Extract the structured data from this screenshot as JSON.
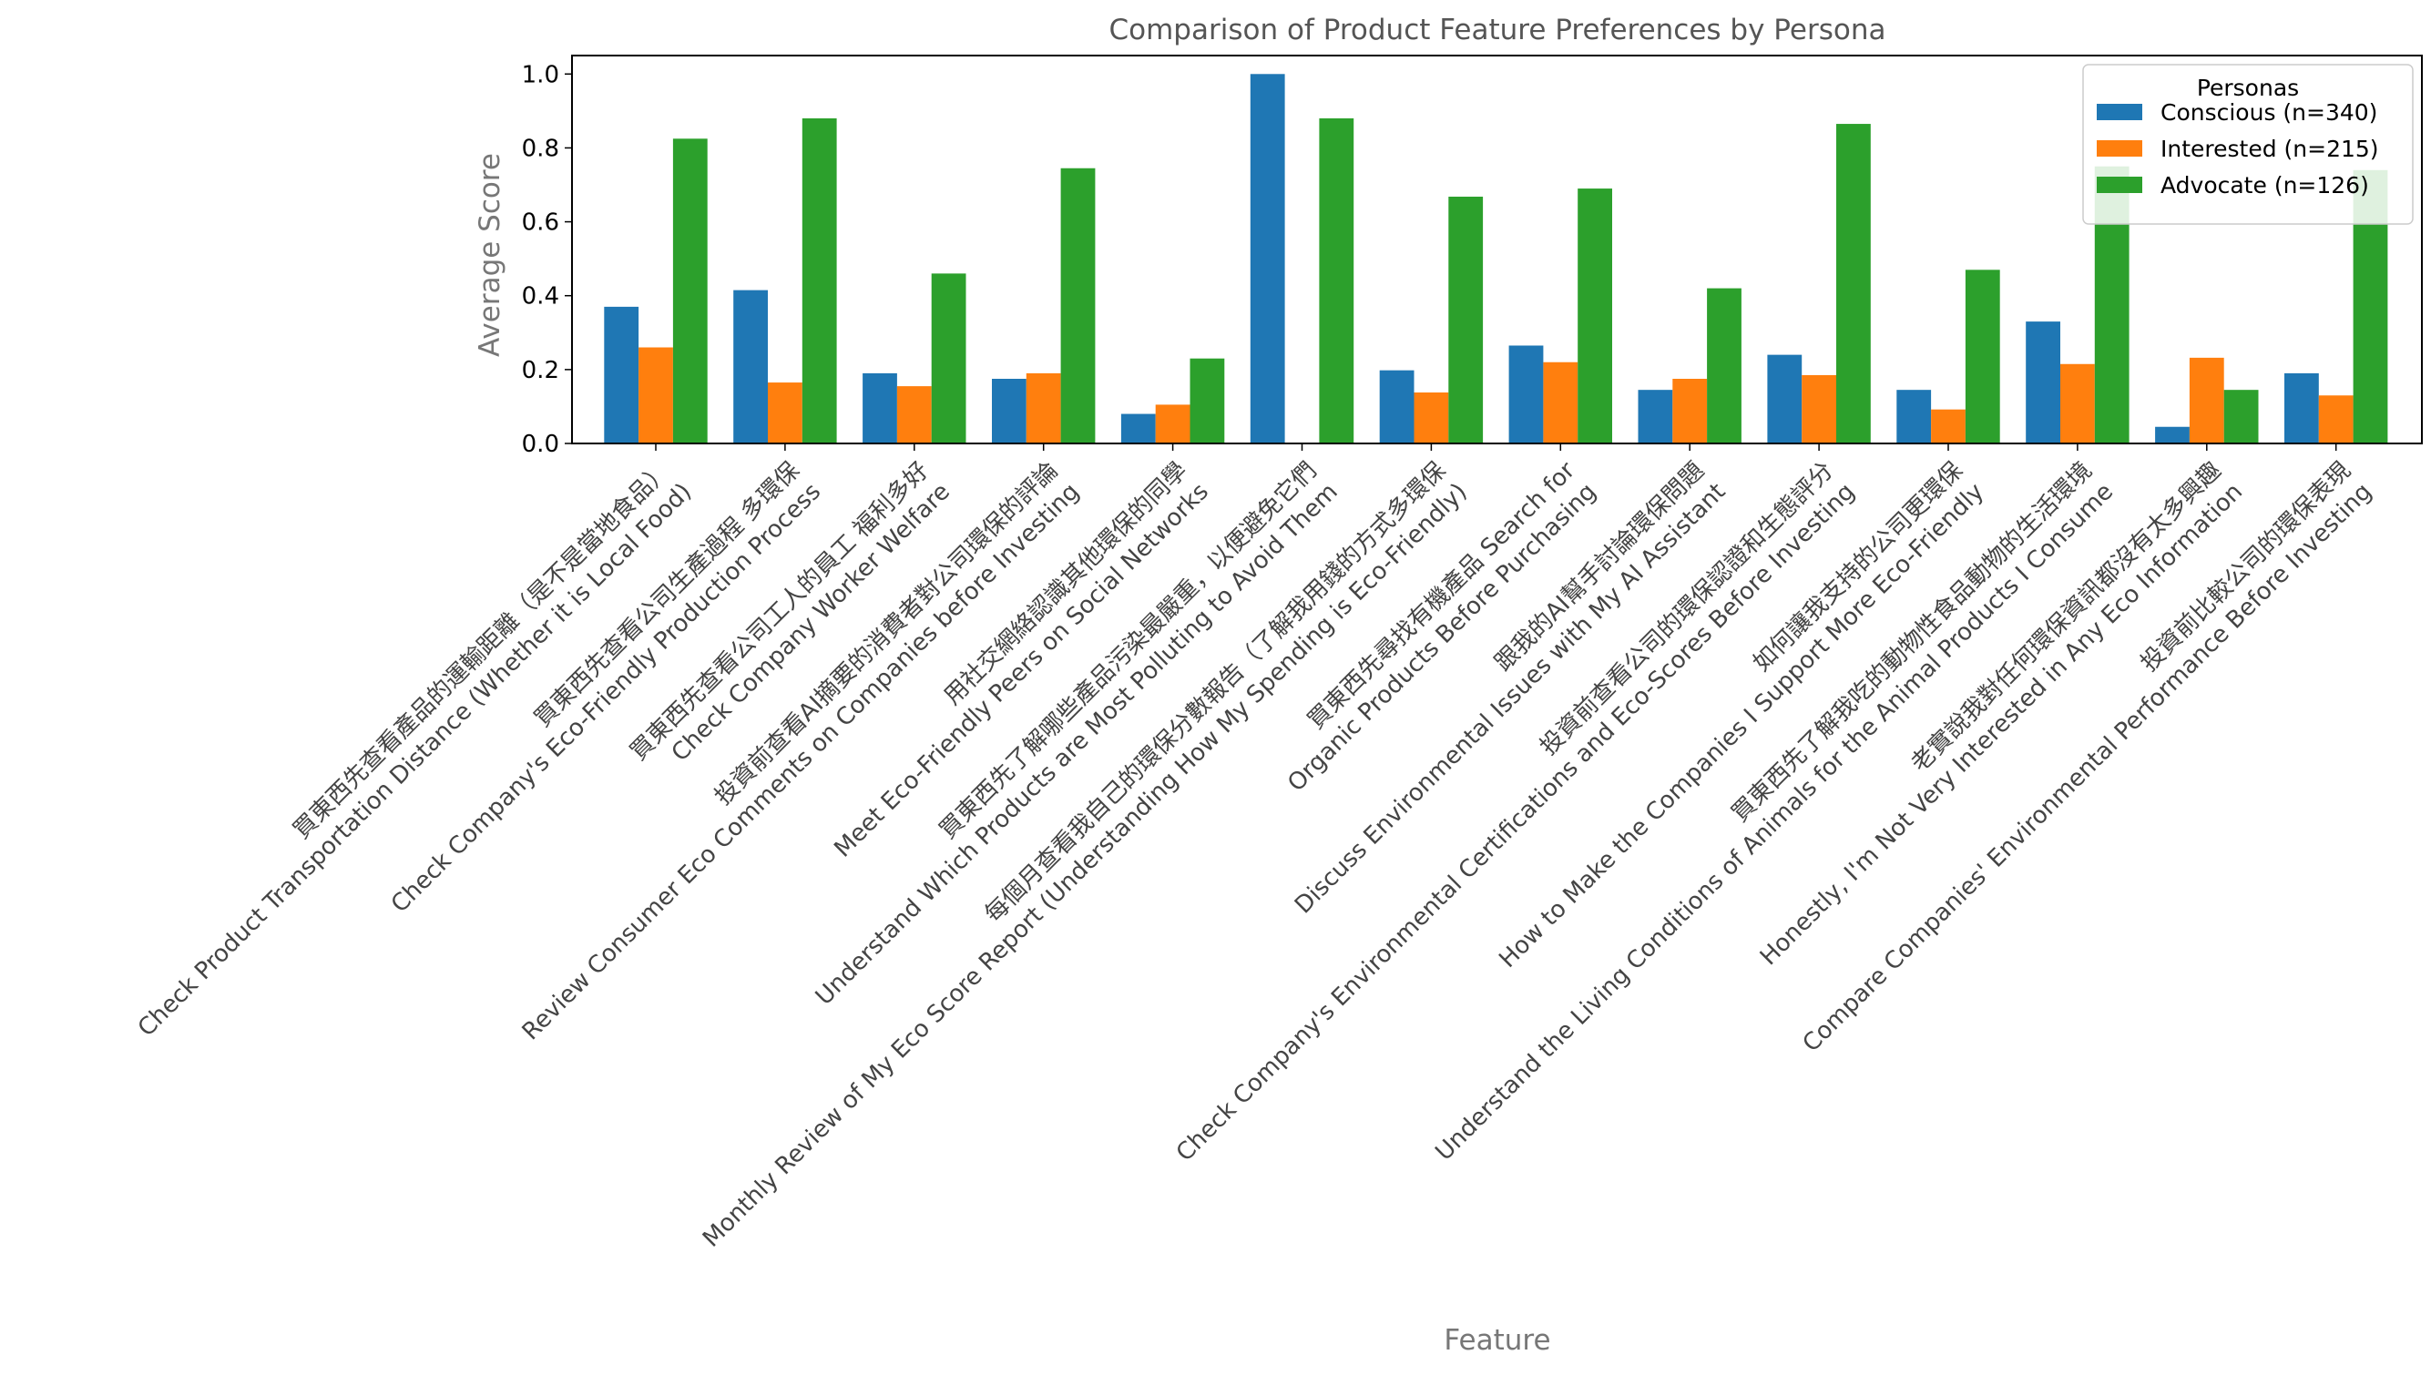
{
  "chart_data": {
    "type": "bar",
    "title": "Comparison of Product Feature Preferences by Persona",
    "xlabel": "Feature",
    "ylabel": "Average Score",
    "ylim": [
      0,
      1.05
    ],
    "yticks": [
      "0.0",
      "0.2",
      "0.4",
      "0.6",
      "0.8",
      "1.0"
    ],
    "grid": false,
    "legend_title": "Personas",
    "legend_position": "top-right",
    "categories": [
      [
        "買東西先查看產品的運輸距離（是不是當地食品）",
        "Check Product Transportation Distance (Whether it is Local Food)"
      ],
      [
        "買東西先查看公司生產過程 多環保",
        "Check Company's Eco-Friendly Production Process"
      ],
      [
        "買東西先查看公司工人的員工 福利多好",
        "Check Company Worker Welfare"
      ],
      [
        "投資前查看AI摘要的消費者對公司環保的評論",
        "Review Consumer Eco Comments on Companies before Investing"
      ],
      [
        "用社交網絡認識其他環保的同學",
        "Meet Eco-Friendly Peers on Social Networks"
      ],
      [
        "買東西先了解哪些產品污染最嚴重，以便避免它們",
        "Understand Which Products are Most Polluting to Avoid Them"
      ],
      [
        "每個月查看我自己的環保分數報告（了解我用錢的方式多環保",
        "Monthly Review of My Eco Score Report (Understanding How My Spending is Eco-Friendly)"
      ],
      [
        "買東西先尋找有機產品 Search for",
        "Organic Products Before Purchasing"
      ],
      [
        "跟我的AI幫手討論環保問題",
        "Discuss Environmental Issues with My AI Assistant"
      ],
      [
        "投資前查看公司的環保認證和生態評分",
        "Check Company's Environmental Certifications and Eco-Scores Before Investing"
      ],
      [
        "如何讓我支持的公司更環保",
        "How to Make the Companies I Support More Eco-Friendly"
      ],
      [
        "買東西先了解我吃的動物性食品動物的生活環境",
        "Understand the Living Conditions of Animals for the Animal Products I Consume"
      ],
      [
        "老實說我對任何環保資訊都沒有太多興趣",
        "Honestly, I'm Not Very Interested in Any Eco Information"
      ],
      [
        "投資前比較公司的環保表現",
        "Compare Companies' Environmental Performance Before Investing"
      ]
    ],
    "series": [
      {
        "name": "Conscious (n=340)",
        "color": "#1f77b4",
        "values": [
          0.37,
          0.415,
          0.19,
          0.175,
          0.08,
          1.0,
          0.198,
          0.265,
          0.145,
          0.24,
          0.145,
          0.33,
          0.045,
          0.19
        ]
      },
      {
        "name": "Interested (n=215)",
        "color": "#ff7f0e",
        "values": [
          0.26,
          0.165,
          0.155,
          0.19,
          0.105,
          0.0,
          0.138,
          0.22,
          0.175,
          0.185,
          0.092,
          0.215,
          0.232,
          0.13
        ]
      },
      {
        "name": "Advocate (n=126)",
        "color": "#2ca02c",
        "values": [
          0.825,
          0.88,
          0.46,
          0.745,
          0.23,
          0.88,
          0.668,
          0.69,
          0.42,
          0.865,
          0.47,
          0.75,
          0.145,
          0.74
        ]
      }
    ]
  }
}
